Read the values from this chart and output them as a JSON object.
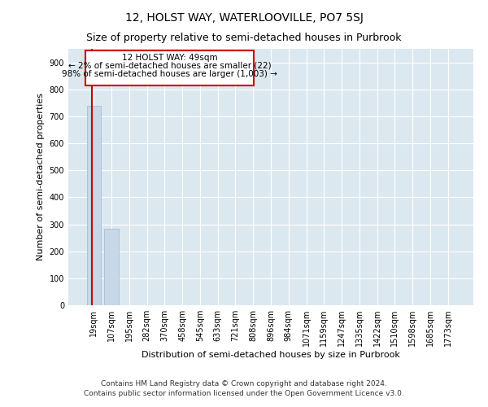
{
  "title": "12, HOLST WAY, WATERLOOVILLE, PO7 5SJ",
  "subtitle": "Size of property relative to semi-detached houses in Purbrook",
  "xlabel": "Distribution of semi-detached houses by size in Purbrook",
  "ylabel": "Number of semi-detached properties",
  "footer_line1": "Contains HM Land Registry data © Crown copyright and database right 2024.",
  "footer_line2": "Contains public sector information licensed under the Open Government Licence v3.0.",
  "annotation_line1": "12 HOLST WAY: 49sqm",
  "annotation_line2": "← 2% of semi-detached houses are smaller (22)",
  "annotation_line3": "98% of semi-detached houses are larger (1,003) →",
  "bar_labels": [
    "19sqm",
    "107sqm",
    "195sqm",
    "282sqm",
    "370sqm",
    "458sqm",
    "545sqm",
    "633sqm",
    "721sqm",
    "808sqm",
    "896sqm",
    "984sqm",
    "1071sqm",
    "1159sqm",
    "1247sqm",
    "1335sqm",
    "1422sqm",
    "1510sqm",
    "1598sqm",
    "1685sqm",
    "1773sqm"
  ],
  "bar_values": [
    740,
    285,
    0,
    0,
    0,
    0,
    0,
    0,
    0,
    0,
    0,
    0,
    0,
    0,
    0,
    0,
    0,
    0,
    0,
    0,
    0
  ],
  "bar_color": "#c8d8e8",
  "bar_edgecolor": "#a0b8d0",
  "red_line_color": "#cc0000",
  "annotation_box_color": "#cc0000",
  "background_color": "#dce8f0",
  "ylim": [
    0,
    950
  ],
  "yticks": [
    0,
    100,
    200,
    300,
    400,
    500,
    600,
    700,
    800,
    900
  ],
  "grid_color": "#ffffff",
  "title_fontsize": 10,
  "subtitle_fontsize": 9,
  "axis_label_fontsize": 8,
  "tick_fontsize": 7,
  "annotation_fontsize": 7.5,
  "footer_fontsize": 6.5
}
